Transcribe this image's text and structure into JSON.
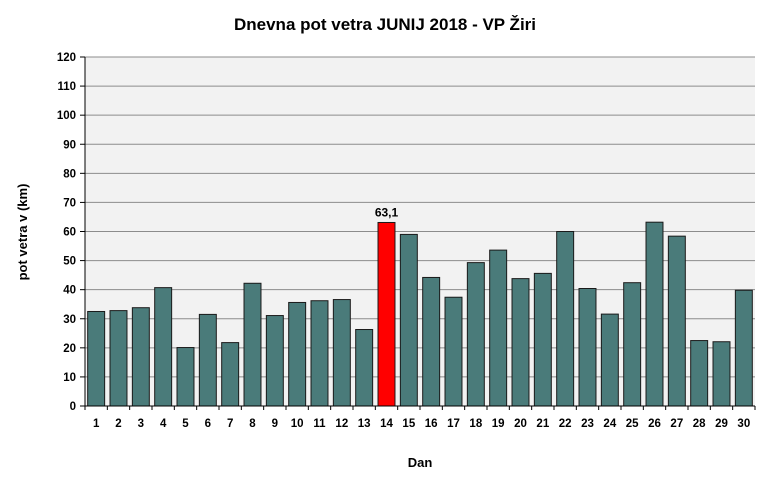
{
  "chart_data": {
    "type": "bar",
    "title": "Dnevna pot vetra JUNIJ 2018 - VP Žiri",
    "xlabel": "Dan",
    "ylabel": "pot vetra v (km)",
    "ylim": [
      0,
      120
    ],
    "yticks": [
      "0",
      "10",
      "20",
      "30",
      "40",
      "50",
      "60",
      "70",
      "80",
      "90",
      "100",
      "110",
      "120"
    ],
    "categories": [
      "1",
      "2",
      "3",
      "4",
      "5",
      "6",
      "7",
      "8",
      "9",
      "10",
      "11",
      "12",
      "13",
      "14",
      "15",
      "16",
      "17",
      "18",
      "19",
      "20",
      "21",
      "22",
      "23",
      "24",
      "25",
      "26",
      "27",
      "28",
      "29",
      "30"
    ],
    "values": [
      32.5,
      32.8,
      33.8,
      40.7,
      20.1,
      31.5,
      21.8,
      42.2,
      31.1,
      35.6,
      36.2,
      36.6,
      26.3,
      63.1,
      59.0,
      44.2,
      37.4,
      49.3,
      53.6,
      43.8,
      45.6,
      60.0,
      40.4,
      31.6,
      42.4,
      63.2,
      58.4,
      22.5,
      22.1,
      39.8
    ],
    "highlight_index": 13,
    "data_labels": [
      {
        "index": 13,
        "text": "63,1"
      }
    ],
    "grid": true,
    "colors": {
      "bar": "#4a7b7a",
      "bar_highlight": "#ff0000",
      "plot_background": "#f2f2f2",
      "grid": "#8c8c8c"
    }
  }
}
